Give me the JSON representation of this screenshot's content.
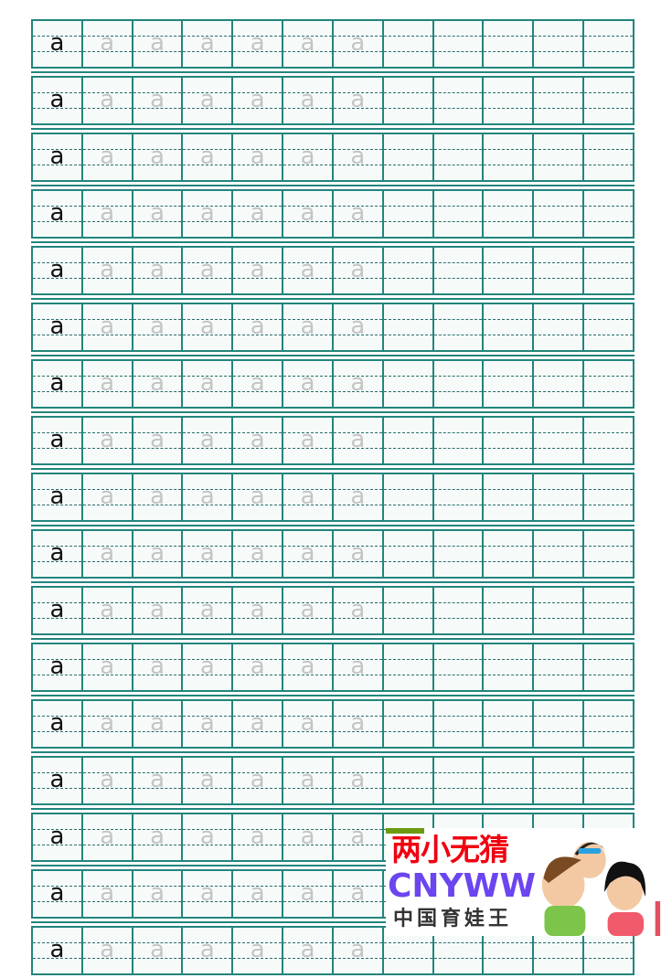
{
  "worksheet": {
    "model_letter": "a",
    "trace_letter": "a",
    "row_count": 17,
    "columns_per_row": 12,
    "trace_count": 6,
    "colors": {
      "grid": "#22857c",
      "model": "#111111",
      "trace": "#c4c4c4"
    }
  },
  "watermark": {
    "title": "两小无猜",
    "brand": "CNYWW",
    "subtitle": "中国育娃王",
    "colors": {
      "title": "#f00010",
      "brand": "#6b45f0",
      "subtitle": "#333333"
    }
  }
}
